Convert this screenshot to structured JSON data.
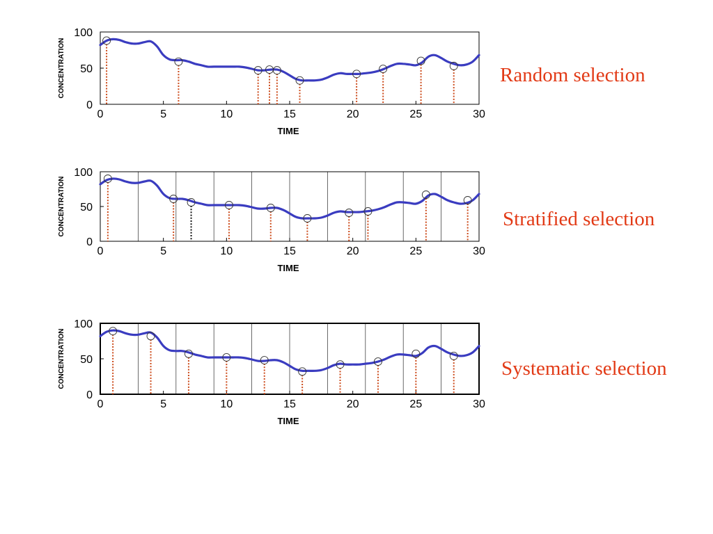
{
  "colors": {
    "curve": "#3a3cc0",
    "sample_stem": "#cc4a1a",
    "alt_stem": "#111111",
    "caption": "#e23a16",
    "frame": "#000000",
    "stratum_line": "#444444"
  },
  "curve": {
    "description": "same concentration-vs-time curve in all three panels",
    "x": [
      0,
      0.5,
      1,
      1.5,
      2,
      2.5,
      3,
      3.5,
      4,
      4.5,
      5,
      5.5,
      6,
      6.5,
      7,
      7.5,
      8,
      8.5,
      9,
      9.5,
      10,
      10.5,
      11,
      11.5,
      12,
      12.5,
      13,
      13.5,
      14,
      14.5,
      15,
      15.5,
      16,
      16.5,
      17,
      17.5,
      18,
      18.5,
      19,
      19.5,
      20,
      20.5,
      21,
      21.5,
      22,
      22.5,
      23,
      23.5,
      24,
      24.5,
      25,
      25.5,
      26,
      26.5,
      27,
      27.5,
      28,
      28.5,
      29,
      29.5,
      30
    ],
    "y": [
      82,
      88,
      90,
      89,
      86,
      84,
      84,
      86,
      87,
      80,
      68,
      62,
      61,
      61,
      59,
      56,
      54,
      52,
      52,
      52,
      52,
      52,
      52,
      51,
      49,
      47,
      47,
      48,
      48,
      45,
      40,
      35,
      33,
      33,
      33,
      34,
      37,
      41,
      43,
      42,
      42,
      42,
      43,
      44,
      46,
      49,
      53,
      56,
      56,
      55,
      54,
      58,
      66,
      68,
      64,
      59,
      56,
      54,
      55,
      59,
      68
    ]
  },
  "chart_data": [
    {
      "type": "scatter",
      "caption": "Random selection",
      "xlabel": "TIME",
      "ylabel": "CONCENTRATION",
      "xlim": [
        0,
        30
      ],
      "ylim": [
        0,
        100
      ],
      "x_ticks": [
        "0",
        "5",
        "10",
        "15",
        "20",
        "25",
        "30"
      ],
      "y_ticks": [
        "100",
        "50",
        "0"
      ],
      "stratum_boundaries": [],
      "samples": [
        {
          "x": 0.5,
          "y": 88
        },
        {
          "x": 6.2,
          "y": 59
        },
        {
          "x": 12.5,
          "y": 47
        },
        {
          "x": 13.4,
          "y": 48
        },
        {
          "x": 14.0,
          "y": 47
        },
        {
          "x": 15.8,
          "y": 33
        },
        {
          "x": 20.3,
          "y": 42
        },
        {
          "x": 22.4,
          "y": 49
        },
        {
          "x": 25.4,
          "y": 60
        },
        {
          "x": 28.0,
          "y": 53
        }
      ],
      "alt_samples": []
    },
    {
      "type": "scatter",
      "caption": "Stratified selection",
      "xlabel": "TIME",
      "ylabel": "CONCENTRATION",
      "xlim": [
        0,
        30
      ],
      "ylim": [
        0,
        100
      ],
      "x_ticks": [
        "0",
        "5",
        "10",
        "15",
        "20",
        "25",
        "30"
      ],
      "y_ticks": [
        "100",
        "50",
        "0"
      ],
      "stratum_boundaries": [
        3,
        6,
        9,
        12,
        15,
        18,
        21,
        24,
        27
      ],
      "samples": [
        {
          "x": 0.6,
          "y": 90
        },
        {
          "x": 5.8,
          "y": 61
        },
        {
          "x": 10.2,
          "y": 52
        },
        {
          "x": 13.5,
          "y": 48
        },
        {
          "x": 16.4,
          "y": 33
        },
        {
          "x": 19.7,
          "y": 41
        },
        {
          "x": 21.2,
          "y": 43
        },
        {
          "x": 25.8,
          "y": 67
        },
        {
          "x": 29.1,
          "y": 59
        }
      ],
      "alt_samples": [
        {
          "x": 7.2,
          "y": 56
        }
      ]
    },
    {
      "type": "scatter",
      "caption": "Systematic selection",
      "xlabel": "TIME",
      "ylabel": "CONCENTRATION",
      "xlim": [
        0,
        30
      ],
      "ylim": [
        0,
        100
      ],
      "x_ticks": [
        "0",
        "5",
        "10",
        "15",
        "20",
        "25",
        "30"
      ],
      "y_ticks": [
        "100",
        "50",
        "0"
      ],
      "stratum_boundaries": [
        3,
        6,
        9,
        12,
        15,
        18,
        21,
        24,
        27
      ],
      "samples": [
        {
          "x": 1,
          "y": 89
        },
        {
          "x": 4,
          "y": 82
        },
        {
          "x": 7,
          "y": 57
        },
        {
          "x": 10,
          "y": 52
        },
        {
          "x": 13,
          "y": 48
        },
        {
          "x": 16,
          "y": 32
        },
        {
          "x": 19,
          "y": 42
        },
        {
          "x": 22,
          "y": 46
        },
        {
          "x": 25,
          "y": 57
        },
        {
          "x": 28,
          "y": 54
        }
      ],
      "alt_samples": []
    }
  ]
}
